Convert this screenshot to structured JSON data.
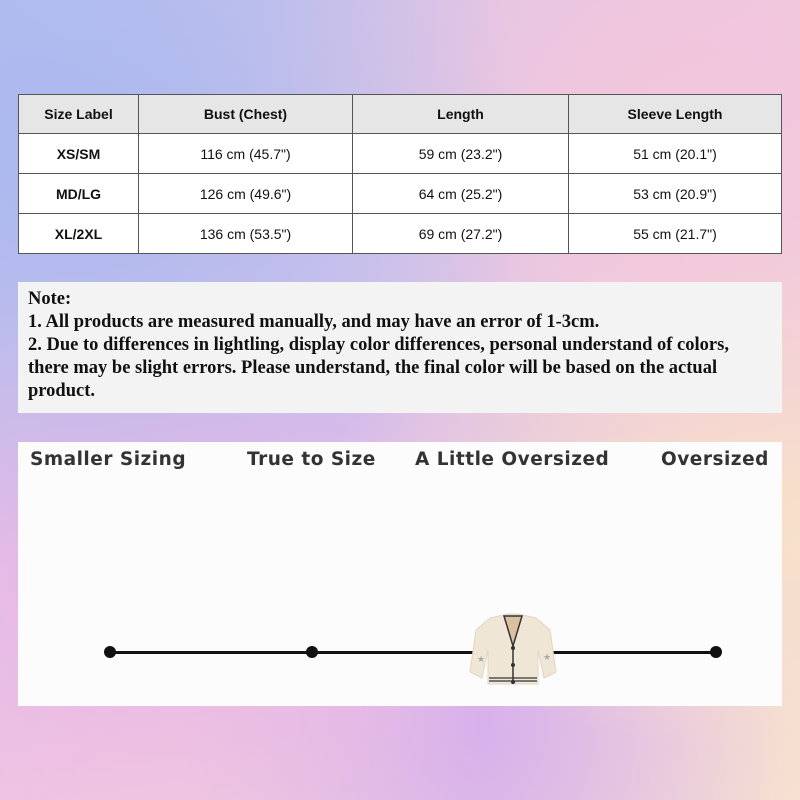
{
  "table": {
    "headers": [
      "Size Label",
      "Bust (Chest)",
      "Length",
      "Sleeve Length"
    ],
    "rows": [
      [
        "XS/SM",
        "116 cm (45.7\")",
        "59 cm (23.2\")",
        "51 cm (20.1\")"
      ],
      [
        "MD/LG",
        "126 cm (49.6\")",
        "64 cm (25.2\")",
        "53 cm (20.9\")"
      ],
      [
        "XL/2XL",
        "136 cm (53.5\")",
        "69 cm (27.2\")",
        "55 cm (21.7\")"
      ]
    ]
  },
  "note": {
    "title": "Note:",
    "lines": [
      "1. All products are measured manually, and may have an error of 1-3cm.",
      "2. Due to differences in lightling, display color differences, personal understand of colors, there may be slight errors. Please understand, the final color will be based on the actual product."
    ]
  },
  "fit_scale": {
    "labels": [
      "Smaller Sizing",
      "True to Size",
      "A Little Oversized",
      "Oversized"
    ],
    "selected_index": 2,
    "marker_icon": "cardigan-icon"
  }
}
